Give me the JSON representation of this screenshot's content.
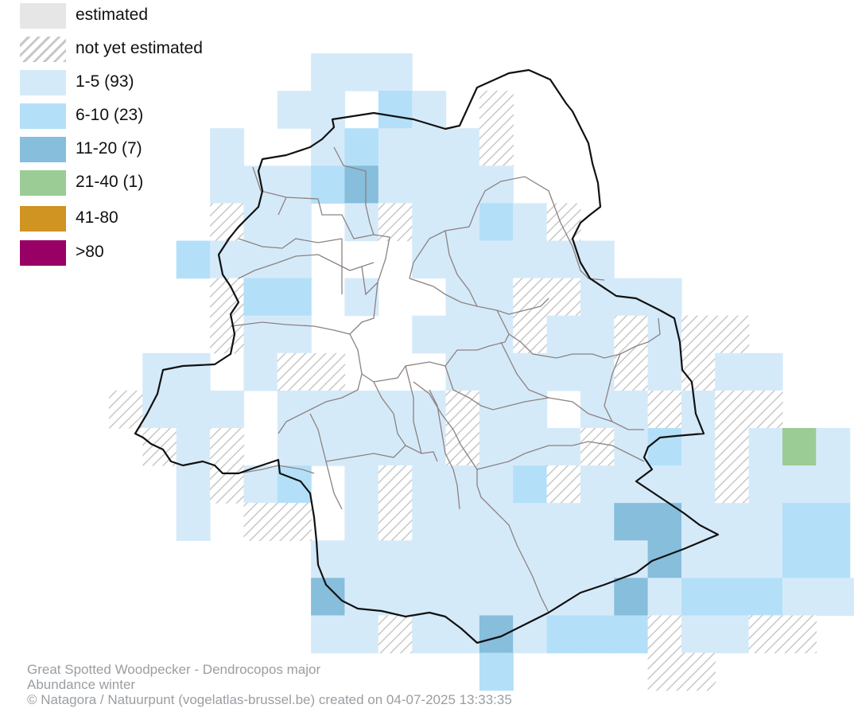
{
  "legend": {
    "items": [
      {
        "label": "estimated",
        "fill": "#e6e6e6",
        "pattern": false
      },
      {
        "label": "not yet estimated",
        "fill": "#ffffff",
        "pattern": true
      },
      {
        "label": "1-5 (93)",
        "fill": "#d5eaf9",
        "pattern": false
      },
      {
        "label": "6-10 (23)",
        "fill": "#b3e0f8",
        "pattern": false
      },
      {
        "label": "11-20 (7)",
        "fill": "#86bedc",
        "pattern": false
      },
      {
        "label": "21-40 (1)",
        "fill": "#9bcc95",
        "pattern": false
      },
      {
        "label": "41-80",
        "fill": "#cf9421",
        "pattern": false
      },
      {
        "label": ">80",
        "fill": "#990066",
        "pattern": false
      }
    ]
  },
  "map": {
    "outline_color": "#111111",
    "municipality_border_color": "#8c8280",
    "hatch_color": "#c8c8c8",
    "legend_class_of_cell": {
      "1": "1-5 (93)",
      "2": "6-10 (23)",
      "3": "11-20 (7)",
      "4": "21-40 (1)",
      "5": "not yet estimated"
    }
  },
  "credits": {
    "line1": "Great Spotted Woodpecker - Dendrocopos major",
    "line2": "Abundance winter",
    "line3": "© Natagora / Natuurpunt (vogelatlas-brussel.be) created on 04-07-2025 13:33:35"
  }
}
